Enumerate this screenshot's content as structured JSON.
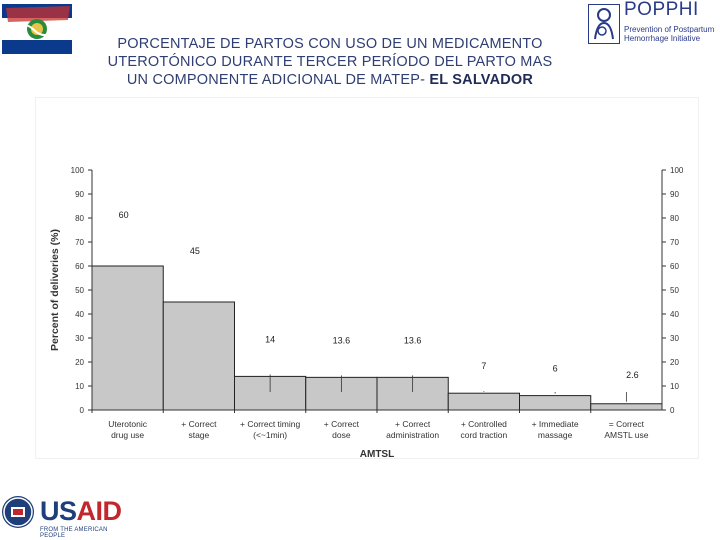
{
  "slide": {
    "title_line1": "PORCENTAJE DE PARTOS CON USO DE UN MEDICAMENTO",
    "title_line2": "UTEROTÓNICO DURANTE TERCER PERÍODO DEL PARTO MAS",
    "title_line3": "UN COMPONENTE ADICIONAL DE MATEP-",
    "title_highlight": "EL SALVADOR"
  },
  "logo": {
    "name": "POPPHI",
    "sub_line1": "Prevention of Postpartum",
    "sub_line2": "Hemorrhage Initiative"
  },
  "usaid": {
    "us": "US",
    "aid": "AID",
    "tagline": "FROM THE AMERICAN PEOPLE"
  },
  "colors": {
    "bar_fill": "#c8c8c8",
    "bar_stroke": "#222222",
    "title_text": "#2f3e73",
    "usaid_blue": "#1f3f7a",
    "usaid_red": "#c1272d"
  },
  "chart_data": {
    "type": "bar",
    "title": "",
    "xlabel": "AMTSL",
    "ylabel": "Percent of deliveries (%)",
    "ylim": [
      0,
      100
    ],
    "yticks": [
      0,
      10,
      20,
      30,
      40,
      50,
      60,
      70,
      80,
      90,
      100
    ],
    "right_axis_ticks": true,
    "grid": false,
    "categories": [
      [
        "Uterotonic",
        "drug use"
      ],
      [
        "+ Correct",
        "stage"
      ],
      [
        "+ Correct timing",
        "(<~1min)"
      ],
      [
        "+ Correct",
        "dose"
      ],
      [
        "+ Correct",
        "administration"
      ],
      [
        "+ Controlled",
        "cord traction"
      ],
      [
        "+ Immediate",
        "massage"
      ],
      [
        "= Correct",
        "AMSTL use"
      ]
    ],
    "values": [
      60,
      45,
      14,
      13.6,
      13.6,
      7,
      6,
      2.6
    ],
    "value_labels": [
      "60",
      "45",
      "14",
      "13.6",
      "13.6",
      "7",
      "6",
      "2.6"
    ]
  }
}
